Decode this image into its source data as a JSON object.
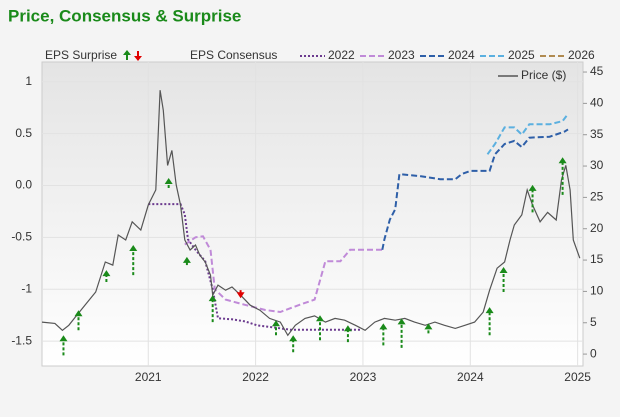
{
  "chart_data": {
    "type": "line",
    "title": "Price, Consensus & Surprise",
    "surprise_label": "EPS Surprise",
    "consensus_label": "EPS Consensus",
    "xlim": [
      2020.01,
      2025.05
    ],
    "xticks": [
      2021,
      2022,
      2023,
      2024,
      2025
    ],
    "ylim": [
      -1.74,
      1.19
    ],
    "yticks": [
      1,
      0.5,
      {
        "value": 0,
        "label": "0.0"
      },
      -0.5,
      -1,
      -1.5
    ],
    "y2lim": [
      -1.9,
      46.6
    ],
    "y2ticks": [
      0,
      5,
      10,
      15,
      20,
      25,
      30,
      35,
      40,
      45
    ],
    "grid": true,
    "series": [
      {
        "name": "2022",
        "color": "#6b3a8e",
        "dash": "dotted",
        "x": [
          2021.0,
          2021.3,
          2021.34,
          2021.37,
          2021.44,
          2021.53,
          2021.6,
          2021.65,
          2021.78,
          2021.9,
          2022.02,
          2022.18,
          2022.32,
          2022.74,
          2022.99
        ],
        "values": [
          -0.18,
          -0.18,
          -0.28,
          -0.52,
          -0.62,
          -0.73,
          -1.0,
          -1.28,
          -1.29,
          -1.31,
          -1.35,
          -1.37,
          -1.39,
          -1.39,
          -1.39
        ]
      },
      {
        "name": "2023",
        "color": "#c08ad8",
        "dash": "dashed",
        "x": [
          2021.34,
          2021.44,
          2021.51,
          2021.58,
          2021.62,
          2021.72,
          2021.9,
          2022.09,
          2022.23,
          2022.41,
          2022.55,
          2022.65,
          2022.79,
          2022.88,
          2023.18
        ],
        "values": [
          -0.57,
          -0.5,
          -0.49,
          -0.62,
          -1.0,
          -1.1,
          -1.15,
          -1.2,
          -1.22,
          -1.15,
          -1.1,
          -0.73,
          -0.73,
          -0.62,
          -0.62
        ]
      },
      {
        "name": "2024",
        "color": "#2e5fa8",
        "dash": "dashed",
        "x": [
          2023.18,
          2023.2,
          2023.25,
          2023.3,
          2023.34,
          2023.53,
          2023.72,
          2023.86,
          2023.92,
          2024.0,
          2024.18,
          2024.23,
          2024.32,
          2024.41,
          2024.48,
          2024.55,
          2024.74,
          2024.88,
          2024.91
        ],
        "values": [
          -0.62,
          -0.52,
          -0.33,
          -0.23,
          0.11,
          0.09,
          0.06,
          0.06,
          0.11,
          0.14,
          0.14,
          0.3,
          0.4,
          0.43,
          0.37,
          0.46,
          0.47,
          0.52,
          0.54
        ]
      },
      {
        "name": "2025",
        "color": "#5bb0e0",
        "dash": "dashed",
        "x": [
          2024.16,
          2024.23,
          2024.32,
          2024.41,
          2024.48,
          2024.55,
          2024.74,
          2024.86,
          2024.91
        ],
        "values": [
          0.3,
          0.4,
          0.56,
          0.56,
          0.49,
          0.59,
          0.59,
          0.62,
          0.69
        ]
      },
      {
        "name": "2026",
        "color": "#b08a50",
        "dash": "dashed",
        "x": [],
        "values": []
      },
      {
        "name": "Price ($)",
        "color": "#555555",
        "dash": "solid",
        "axis": "y2",
        "x": [
          2020.01,
          2020.13,
          2020.2,
          2020.26,
          2020.32,
          2020.41,
          2020.51,
          2020.6,
          2020.67,
          2020.72,
          2020.79,
          2020.85,
          2020.93,
          2021.0,
          2021.07,
          2021.11,
          2021.14,
          2021.18,
          2021.22,
          2021.26,
          2021.3,
          2021.34,
          2021.39,
          2021.44,
          2021.48,
          2021.53,
          2021.58,
          2021.6,
          2021.65,
          2021.72,
          2021.78,
          2021.86,
          2021.95,
          2022.04,
          2022.13,
          2022.23,
          2022.3,
          2022.37,
          2022.46,
          2022.55,
          2022.65,
          2022.74,
          2022.83,
          2022.93,
          2023.02,
          2023.11,
          2023.2,
          2023.3,
          2023.39,
          2023.48,
          2023.58,
          2023.67,
          2023.76,
          2023.86,
          2023.95,
          2024.04,
          2024.12,
          2024.18,
          2024.25,
          2024.32,
          2024.37,
          2024.41,
          2024.48,
          2024.53,
          2024.58,
          2024.65,
          2024.72,
          2024.8,
          2024.85,
          2024.89,
          2024.93,
          2024.96,
          2025.02
        ],
        "values": [
          5.1,
          4.9,
          3.8,
          4.6,
          5.9,
          7.8,
          9.9,
          14.7,
          14.2,
          19.0,
          18.2,
          21.1,
          19.8,
          23.8,
          26.2,
          42.1,
          38.9,
          30.1,
          32.5,
          27.0,
          23.8,
          18.2,
          16.6,
          17.4,
          15.8,
          14.7,
          12.6,
          9.4,
          11.0,
          10.2,
          10.7,
          9.4,
          7.8,
          7.0,
          5.7,
          5.1,
          3.0,
          4.6,
          5.7,
          6.1,
          5.1,
          5.7,
          5.4,
          4.6,
          3.8,
          5.1,
          5.7,
          5.4,
          5.7,
          5.1,
          4.6,
          5.1,
          4.6,
          4.1,
          4.6,
          5.1,
          6.7,
          10.2,
          13.7,
          14.7,
          18.2,
          20.6,
          22.2,
          26.2,
          23.8,
          21.1,
          22.6,
          21.4,
          27.8,
          30.1,
          26.2,
          18.2,
          15.3
        ]
      }
    ],
    "surprises": {
      "up_color": "#1a8a1a",
      "down_color": "#e00000",
      "x": [
        2020.21,
        2020.35,
        2020.61,
        2020.86,
        2021.19,
        2021.36,
        2021.6,
        2021.86,
        2022.19,
        2022.35,
        2022.6,
        2022.86,
        2023.19,
        2023.36,
        2023.61,
        2024.18,
        2024.31,
        2024.58,
        2024.86
      ],
      "from": [
        -0.2,
        3.8,
        11.5,
        12.6,
        26.5,
        14.2,
        5.1,
        10.2,
        3.0,
        0.3,
        2.2,
        1.9,
        1.4,
        1.0,
        3.3,
        3.0,
        9.9,
        22.6,
        25.4
      ],
      "to": [
        3.0,
        7.0,
        13.4,
        17.4,
        28.1,
        15.5,
        9.4,
        8.9,
        5.4,
        3.0,
        6.2,
        4.6,
        4.9,
        5.7,
        4.9,
        7.5,
        13.9,
        27.0,
        31.4
      ]
    }
  }
}
